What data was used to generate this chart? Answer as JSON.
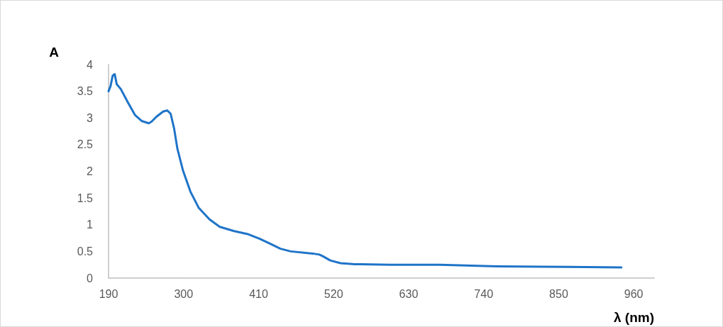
{
  "chart_data": {
    "type": "line",
    "ylabel": "A",
    "xlabel": "λ (nm)",
    "x": [
      190,
      193,
      196,
      199,
      202,
      208,
      218,
      229,
      239,
      249,
      253,
      260,
      270,
      276,
      281,
      286,
      291,
      299,
      310,
      322,
      338,
      353,
      374,
      395,
      411,
      426,
      442,
      457,
      489,
      499,
      504,
      515,
      530,
      551,
      603,
      676,
      759,
      863,
      942
    ],
    "series": [
      {
        "color": "#1f74c8",
        "values": [
          3.5,
          3.6,
          3.79,
          3.82,
          3.63,
          3.54,
          3.3,
          3.05,
          2.94,
          2.9,
          2.93,
          3.02,
          3.12,
          3.14,
          3.08,
          2.81,
          2.42,
          2.02,
          1.62,
          1.32,
          1.1,
          0.96,
          0.88,
          0.82,
          0.74,
          0.65,
          0.55,
          0.5,
          0.46,
          0.44,
          0.41,
          0.33,
          0.28,
          0.26,
          0.25,
          0.25,
          0.22,
          0.21,
          0.2
        ]
      }
    ],
    "xlim": [
      190,
      990
    ],
    "xticks": [
      190,
      300,
      410,
      520,
      630,
      740,
      850,
      960
    ],
    "ylim": [
      0,
      4
    ],
    "yticks": [
      0,
      0.5,
      1,
      1.5,
      2,
      2.5,
      3,
      3.5,
      4
    ],
    "grid": false,
    "marker": "none",
    "line_style": "solid"
  }
}
